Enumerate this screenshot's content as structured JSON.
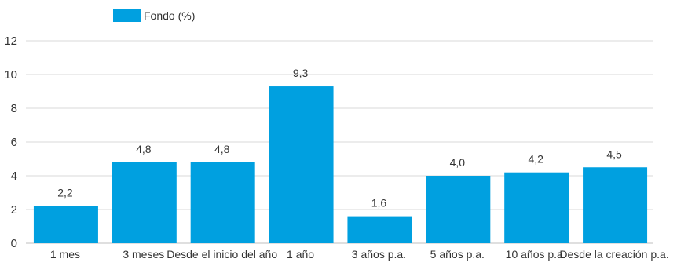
{
  "chart_data": {
    "type": "bar",
    "categories": [
      "1 mes",
      "3 meses",
      "Desde el inicio del año",
      "1 año",
      "3 años p.a.",
      "5 años p.a.",
      "10 años p.a.",
      "Desde la creación p.a."
    ],
    "series": [
      {
        "name": "Fondo (%)",
        "values": [
          2.2,
          4.8,
          4.8,
          9.3,
          1.6,
          4.0,
          4.2,
          4.5
        ],
        "color": "#00a0e0"
      }
    ],
    "data_labels": [
      "2,2",
      "4,8",
      "4,8",
      "9,3",
      "1,6",
      "4,0",
      "4,2",
      "4,5"
    ],
    "yticks": [
      "0",
      "2",
      "4",
      "6",
      "8",
      "10",
      "12"
    ],
    "ylim": [
      0,
      12
    ],
    "grid": true,
    "legend": "top-left",
    "title": "",
    "xlabel": "",
    "ylabel": ""
  }
}
